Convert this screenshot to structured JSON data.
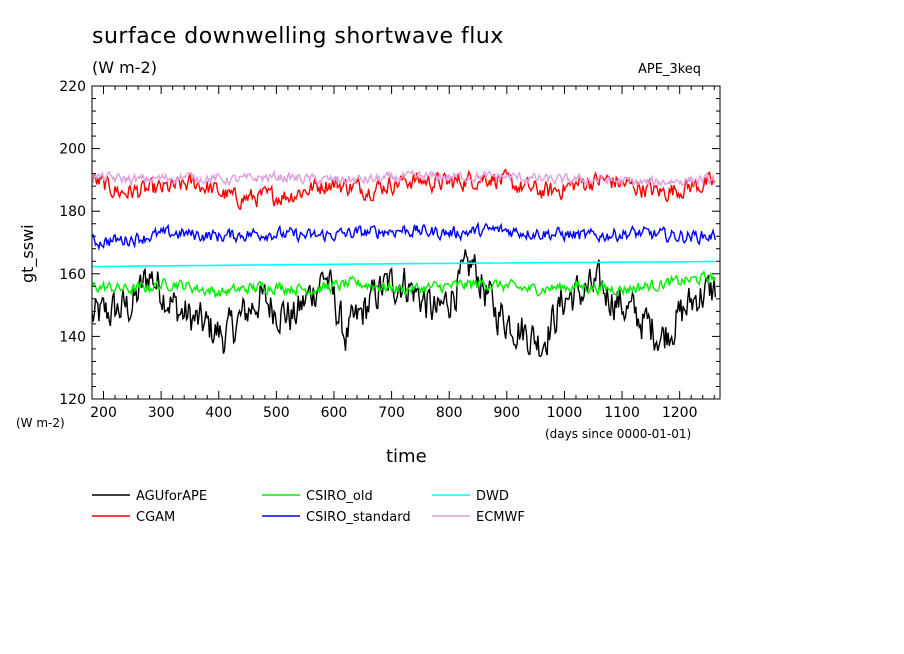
{
  "chart_data": {
    "type": "line",
    "title": "surface downwelling shortwave flux",
    "subtitle": "(W m-2)",
    "tag": "APE_3keq",
    "ylabel": "gt_sswi",
    "yunits": "(W m-2)",
    "xlabel": "time",
    "xunits": "(days since 0000-01-01)",
    "xlim": [
      180,
      1270
    ],
    "ylim": [
      120,
      220
    ],
    "xticks": [
      200,
      300,
      400,
      500,
      600,
      700,
      800,
      900,
      1000,
      1100,
      1200
    ],
    "yticks": [
      120,
      140,
      160,
      180,
      200,
      220
    ],
    "grid": false,
    "legend_placement": "bottom",
    "series": [
      {
        "name": "AGUforAPE",
        "color": "#000000",
        "x": [
          180,
          250,
          280,
          330,
          410,
          470,
          530,
          585,
          620,
          680,
          720,
          780,
          840,
          880,
          960,
          1000,
          1060,
          1100,
          1170,
          1230,
          1262
        ],
        "y": [
          146,
          150,
          160,
          148,
          140,
          152,
          146,
          160,
          140,
          155,
          158,
          147,
          163,
          148,
          138,
          152,
          156,
          150,
          140,
          153,
          155
        ]
      },
      {
        "name": "CGAM",
        "color": "#ff0000",
        "x": [
          180,
          230,
          300,
          360,
          430,
          520,
          590,
          660,
          730,
          800,
          870,
          920,
          970,
          1030,
          1070,
          1120,
          1170,
          1220,
          1262
        ],
        "y": [
          190,
          186,
          187,
          189,
          184,
          185,
          189,
          187,
          190,
          189,
          191,
          188,
          186,
          189,
          190,
          188,
          186,
          188,
          189
        ]
      },
      {
        "name": "CSIRO_old",
        "color": "#00ee00",
        "x": [
          180,
          250,
          320,
          400,
          480,
          560,
          640,
          720,
          800,
          860,
          940,
          1020,
          1100,
          1180,
          1262
        ],
        "y": [
          156,
          155,
          157,
          154,
          156,
          155,
          157,
          155,
          156,
          157,
          155,
          156,
          155,
          157,
          159
        ]
      },
      {
        "name": "CSIRO_standard",
        "color": "#0000ff",
        "x": [
          180,
          240,
          320,
          400,
          480,
          560,
          640,
          720,
          800,
          880,
          960,
          1040,
          1120,
          1200,
          1262
        ],
        "y": [
          170,
          171,
          173,
          172,
          173,
          172,
          173,
          174,
          173,
          174,
          173,
          172,
          173,
          172,
          172
        ]
      },
      {
        "name": "DWD",
        "color": "#00ffff",
        "x": [
          180,
          400,
          700,
          1000,
          1262
        ],
        "y": [
          162.3,
          162.7,
          163.2,
          163.6,
          163.9
        ]
      },
      {
        "name": "ECMWF",
        "color": "#dda0dd",
        "x": [
          180,
          260,
          340,
          420,
          500,
          580,
          660,
          740,
          820,
          900,
          980,
          1060,
          1140,
          1220,
          1262
        ],
        "y": [
          191,
          190,
          191,
          190,
          191,
          190,
          190,
          191,
          191,
          191,
          190,
          190,
          189,
          190,
          190
        ]
      }
    ]
  }
}
